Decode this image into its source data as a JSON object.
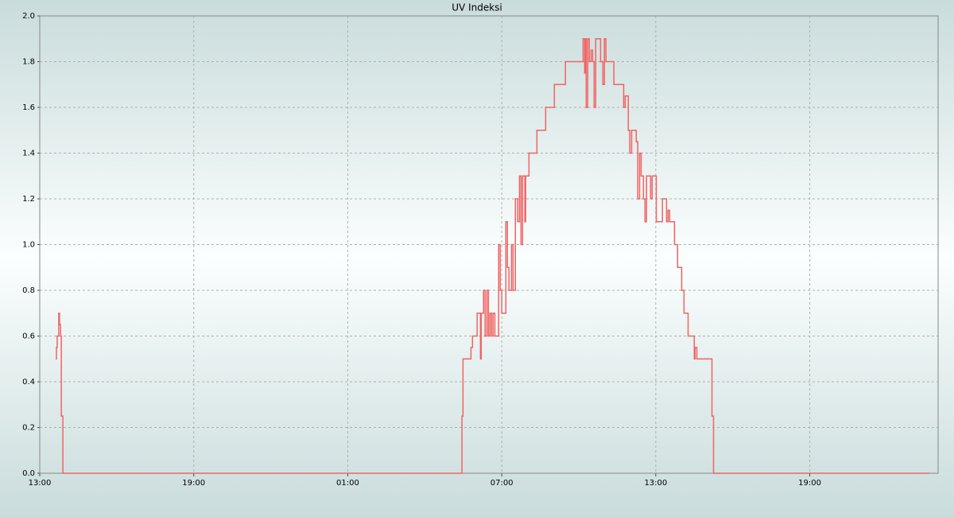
{
  "chart_data": {
    "type": "line",
    "title": "UV Indeksi",
    "x": [
      0.62,
      0.65,
      0.68,
      0.74,
      0.77,
      0.81,
      0.84,
      0.9,
      16.45,
      16.49,
      16.8,
      16.86,
      17.04,
      17.17,
      17.2,
      17.29,
      17.35,
      17.42,
      17.48,
      17.54,
      17.6,
      17.66,
      17.73,
      17.88,
      17.94,
      18.0,
      18.16,
      18.22,
      18.28,
      18.38,
      18.44,
      18.53,
      18.62,
      18.69,
      18.75,
      18.81,
      18.9,
      18.93,
      19.06,
      19.37,
      19.71,
      20.05,
      20.48,
      21.17,
      21.23,
      21.26,
      21.29,
      21.35,
      21.41,
      21.48,
      21.54,
      21.6,
      21.66,
      21.85,
      21.94,
      22.0,
      22.06,
      22.37,
      22.75,
      22.81,
      22.93,
      22.99,
      23.06,
      23.24,
      23.3,
      23.37,
      23.43,
      23.52,
      23.58,
      23.64,
      23.8,
      23.86,
      24.02,
      24.26,
      24.42,
      24.48,
      24.54,
      24.73,
      24.85,
      25.01,
      25.1,
      25.26,
      25.5,
      25.53,
      25.6,
      26.19,
      26.25,
      34.65
    ],
    "series": [
      {
        "color": "#f06464",
        "values": [
          0.5,
          0.55,
          0.6,
          0.7,
          0.65,
          0.6,
          0.25,
          0,
          0.25,
          0.5,
          0.55,
          0.6,
          0.7,
          0.5,
          0.7,
          0.8,
          0.6,
          0.8,
          0.6,
          0.7,
          0.6,
          0.7,
          0.6,
          1.0,
          0.8,
          0.7,
          1.1,
          0.9,
          0.8,
          1.0,
          0.8,
          1.2,
          1.1,
          1.3,
          1.0,
          1.3,
          1.1,
          1.3,
          1.4,
          1.5,
          1.6,
          1.7,
          1.8,
          1.9,
          1.75,
          1.9,
          1.6,
          1.9,
          1.8,
          1.85,
          1.8,
          1.6,
          1.9,
          1.8,
          1.7,
          1.9,
          1.8,
          1.7,
          1.6,
          1.65,
          1.5,
          1.4,
          1.5,
          1.45,
          1.2,
          1.4,
          1.3,
          1.2,
          1.1,
          1.3,
          1.2,
          1.3,
          1.1,
          1.2,
          1.1,
          1.15,
          1.1,
          1.0,
          0.9,
          0.8,
          0.7,
          0.6,
          0.5,
          0.55,
          0.5,
          0.25,
          0,
          0
        ]
      }
    ],
    "xlim": [
      0,
      35
    ],
    "xticks": [
      {
        "value": 0,
        "label": "13:00"
      },
      {
        "value": 6,
        "label": "19:00"
      },
      {
        "value": 12,
        "label": "01:00"
      },
      {
        "value": 18,
        "label": "07:00"
      },
      {
        "value": 24,
        "label": "13:00"
      },
      {
        "value": 30,
        "label": "19:00"
      }
    ],
    "ylim": [
      0,
      2
    ],
    "yticks": [
      {
        "value": 0,
        "label": "0.0"
      },
      0.2,
      0.4,
      0.6,
      0.8,
      {
        "value": 1,
        "label": "1.0"
      },
      1.2,
      1.4,
      1.6,
      1.8,
      {
        "value": 2,
        "label": "2.0"
      }
    ],
    "grid": true
  }
}
